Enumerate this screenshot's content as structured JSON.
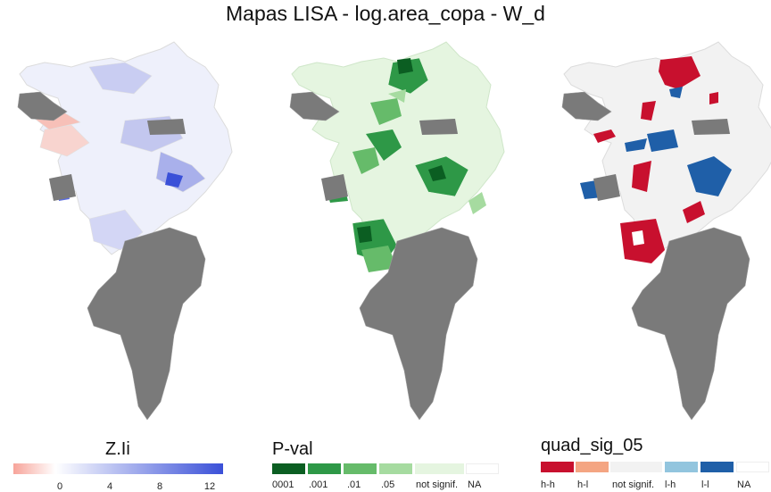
{
  "title": "Mapas LISA - log.area_copa - W_d",
  "panels": [
    {
      "id": "zli",
      "legend_title": "Z.Ii"
    },
    {
      "id": "pval",
      "legend_title": "P-val"
    },
    {
      "id": "quad",
      "legend_title": "quad_sig_05"
    }
  ],
  "legend_zli": {
    "ticks": [
      "0",
      "4",
      "8",
      "12"
    ],
    "colors": [
      "#f7a49a",
      "#ffffff",
      "#3a50d8"
    ]
  },
  "legend_pval": {
    "labels": [
      "0001",
      ".001",
      ".01",
      ".05",
      "not signif.",
      "NA"
    ],
    "colors": [
      "#0b5e22",
      "#2e9847",
      "#66bb6a",
      "#a6dba0",
      "#e5f5e0",
      "#ffffff"
    ]
  },
  "legend_quad": {
    "labels": [
      "h-h",
      "h-l",
      "not signif.",
      "l-h",
      "l-l",
      "NA"
    ],
    "colors": [
      "#c8102e",
      "#f4a582",
      "#f2f2f2",
      "#92c5de",
      "#1f5fa8",
      "#ffffff"
    ]
  },
  "map_colors": {
    "na_gray": "#7a7a7a",
    "outline": "#dcdcdc"
  }
}
